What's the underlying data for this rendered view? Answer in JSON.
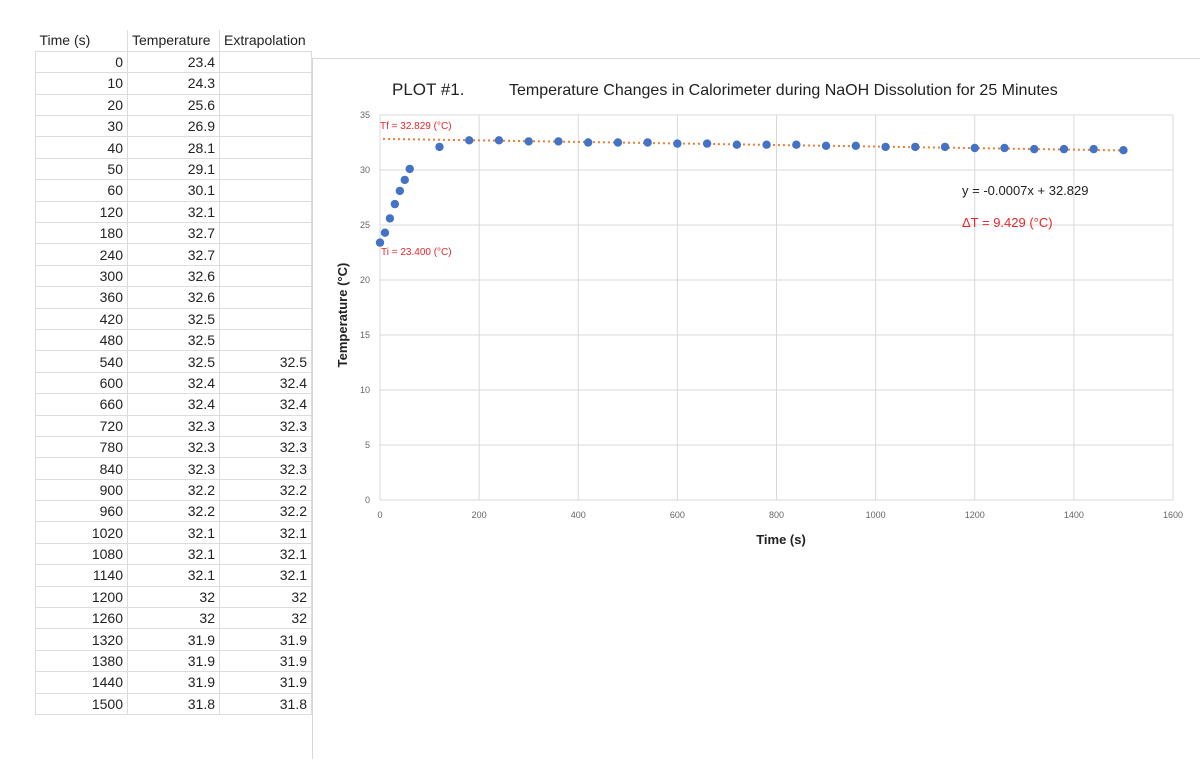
{
  "table": {
    "headers": [
      "Time (s)",
      "Temperature",
      "Extrapolation"
    ],
    "rows": [
      [
        "0",
        "23.4",
        ""
      ],
      [
        "10",
        "24.3",
        ""
      ],
      [
        "20",
        "25.6",
        ""
      ],
      [
        "30",
        "26.9",
        ""
      ],
      [
        "40",
        "28.1",
        ""
      ],
      [
        "50",
        "29.1",
        ""
      ],
      [
        "60",
        "30.1",
        ""
      ],
      [
        "120",
        "32.1",
        ""
      ],
      [
        "180",
        "32.7",
        ""
      ],
      [
        "240",
        "32.7",
        ""
      ],
      [
        "300",
        "32.6",
        ""
      ],
      [
        "360",
        "32.6",
        ""
      ],
      [
        "420",
        "32.5",
        ""
      ],
      [
        "480",
        "32.5",
        ""
      ],
      [
        "540",
        "32.5",
        "32.5"
      ],
      [
        "600",
        "32.4",
        "32.4"
      ],
      [
        "660",
        "32.4",
        "32.4"
      ],
      [
        "720",
        "32.3",
        "32.3"
      ],
      [
        "780",
        "32.3",
        "32.3"
      ],
      [
        "840",
        "32.3",
        "32.3"
      ],
      [
        "900",
        "32.2",
        "32.2"
      ],
      [
        "960",
        "32.2",
        "32.2"
      ],
      [
        "1020",
        "32.1",
        "32.1"
      ],
      [
        "1080",
        "32.1",
        "32.1"
      ],
      [
        "1140",
        "32.1",
        "32.1"
      ],
      [
        "1200",
        "32",
        "32"
      ],
      [
        "1260",
        "32",
        "32"
      ],
      [
        "1320",
        "31.9",
        "31.9"
      ],
      [
        "1380",
        "31.9",
        "31.9"
      ],
      [
        "1440",
        "31.9",
        "31.9"
      ],
      [
        "1500",
        "31.8",
        "31.8"
      ]
    ]
  },
  "chart_data": {
    "type": "scatter",
    "plot_label": "PLOT #1.",
    "title": "Temperature Changes in Calorimeter during NaOH Dissolution for 25 Minutes",
    "xlabel": "Time (s)",
    "ylabel": "Temperature (°C)",
    "xlim": [
      0,
      1600
    ],
    "ylim": [
      0,
      35
    ],
    "xticks": [
      0,
      200,
      400,
      600,
      800,
      1000,
      1200,
      1400,
      1600
    ],
    "yticks": [
      0,
      5,
      10,
      15,
      20,
      25,
      30,
      35
    ],
    "grid": true,
    "series": [
      {
        "name": "Temperature",
        "color": "#4472C4",
        "x": [
          0,
          10,
          20,
          30,
          40,
          50,
          60,
          120,
          180,
          240,
          300,
          360,
          420,
          480,
          540,
          600,
          660,
          720,
          780,
          840,
          900,
          960,
          1020,
          1080,
          1140,
          1200,
          1260,
          1320,
          1380,
          1440,
          1500
        ],
        "y": [
          23.4,
          24.3,
          25.6,
          26.9,
          28.1,
          29.1,
          30.1,
          32.1,
          32.7,
          32.7,
          32.6,
          32.6,
          32.5,
          32.5,
          32.5,
          32.4,
          32.4,
          32.3,
          32.3,
          32.3,
          32.2,
          32.2,
          32.1,
          32.1,
          32.1,
          32,
          32,
          31.9,
          31.9,
          31.9,
          31.8
        ]
      }
    ],
    "trendline": {
      "type": "linear",
      "color": "#ED7D31",
      "style": "dotted",
      "slope": -0.0007,
      "intercept": 32.829,
      "x_range": [
        0,
        1500
      ],
      "equation_label": "y = -0.0007x + 32.829"
    },
    "annotations": [
      {
        "text": "Tf = 32.829 (°C)",
        "color": "#E8262B"
      },
      {
        "text": "Ti = 23.400 (°C)",
        "color": "#E8262B"
      },
      {
        "text": "ΔT = 9.429 (°C)",
        "color": "#E8262B"
      }
    ]
  }
}
